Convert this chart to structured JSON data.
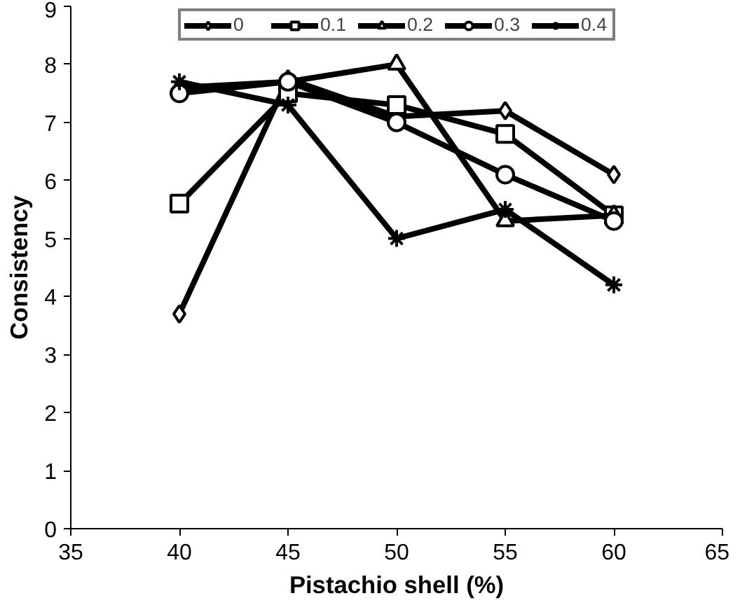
{
  "chart_data": {
    "type": "line",
    "xlabel": "Pistachio shell (%)",
    "ylabel": "Consistency",
    "x": [
      40,
      45,
      50,
      55,
      60
    ],
    "xlim": [
      35,
      65
    ],
    "xticks": [
      35,
      40,
      45,
      50,
      55,
      60,
      65
    ],
    "ylim": [
      0,
      9
    ],
    "yticks": [
      0,
      1,
      2,
      3,
      4,
      5,
      6,
      7,
      8,
      9
    ],
    "grid": false,
    "legend": "top",
    "line_style": "solid",
    "series": [
      {
        "name": "0",
        "color": "#000000",
        "marker": "diamond",
        "values": [
          3.7,
          7.75,
          7.1,
          7.2,
          6.1
        ]
      },
      {
        "name": "0.1",
        "color": "#000000",
        "marker": "square",
        "values": [
          5.6,
          7.5,
          7.3,
          6.8,
          5.4
        ]
      },
      {
        "name": "0.2",
        "color": "#000000",
        "marker": "triangle",
        "values": [
          7.6,
          7.7,
          8.0,
          5.3,
          5.4
        ]
      },
      {
        "name": "0.3",
        "color": "#000000",
        "marker": "circle",
        "values": [
          7.5,
          7.7,
          7.0,
          6.1,
          5.3
        ]
      },
      {
        "name": "0.4",
        "color": "#000000",
        "marker": "cross",
        "values": [
          7.7,
          7.3,
          5.0,
          5.5,
          4.2
        ]
      }
    ]
  }
}
